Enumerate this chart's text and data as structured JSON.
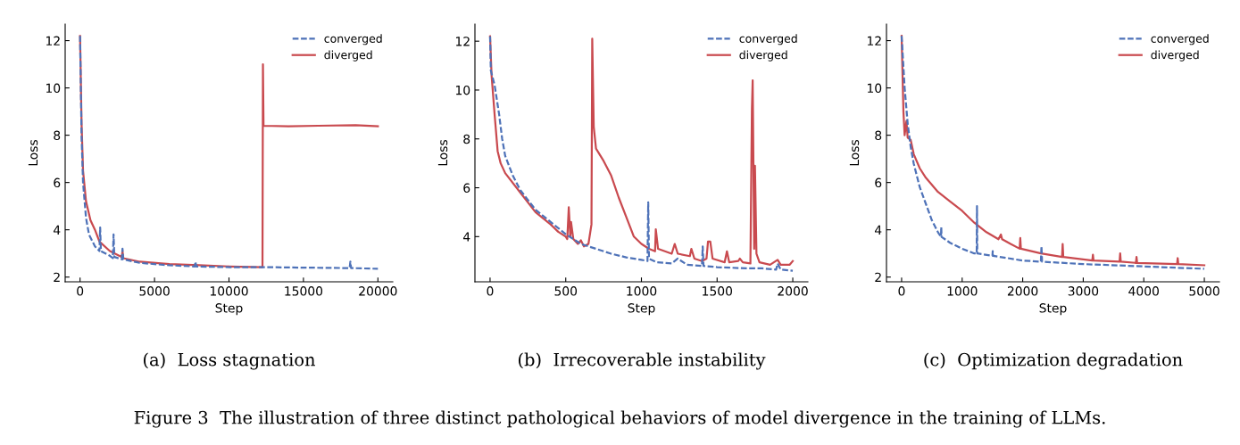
{
  "chart_data": [
    {
      "type": "line",
      "title": "(a)  Loss stagnation",
      "xlabel": "Step",
      "ylabel": "Loss",
      "xlim": [
        -1000,
        21000
      ],
      "ylim": [
        1.8,
        12.7
      ],
      "xticks": [
        0,
        5000,
        10000,
        15000,
        20000
      ],
      "yticks": [
        2,
        4,
        6,
        8,
        10,
        12
      ],
      "legend": "top right",
      "grid": false,
      "annotations": [
        "Figure 3  The illustration of three distinct pathological behaviors of model divergence in the training of LLMs."
      ],
      "series": [
        {
          "name": "converged",
          "color": "#4e72b8",
          "line_style": "dashed",
          "x": [
            0,
            100,
            200,
            400,
            600,
            1000,
            1300,
            1350,
            1400,
            2000,
            2200,
            2250,
            2300,
            2800,
            2850,
            2900,
            4000,
            6000,
            7700,
            7750,
            7800,
            10000,
            12300,
            15000,
            18100,
            18150,
            18200,
            20000
          ],
          "values": [
            12.2,
            8,
            6,
            4.5,
            3.8,
            3.3,
            3.1,
            4.1,
            3.1,
            2.9,
            2.8,
            3.8,
            2.85,
            2.75,
            3.2,
            2.75,
            2.6,
            2.5,
            2.45,
            2.65,
            2.45,
            2.42,
            2.42,
            2.4,
            2.38,
            2.65,
            2.38,
            2.35
          ]
        },
        {
          "name": "diverged",
          "color": "#c94a4f",
          "line_style": "solid",
          "x": [
            0,
            100,
            200,
            400,
            700,
            1000,
            1300,
            2000,
            2800,
            2850,
            2900,
            4000,
            6000,
            8000,
            10000,
            12250,
            12280,
            12320,
            14000,
            16000,
            18500,
            20000
          ],
          "values": [
            12.2,
            8.5,
            6.5,
            5.2,
            4.4,
            4.0,
            3.5,
            3.1,
            2.85,
            3.1,
            2.8,
            2.65,
            2.55,
            2.5,
            2.45,
            2.42,
            11.0,
            8.4,
            8.38,
            8.4,
            8.42,
            8.38
          ]
        }
      ]
    },
    {
      "type": "line",
      "title": "(b)  Irrecoverable instability",
      "xlabel": "Step",
      "ylabel": "Loss",
      "xlim": [
        -100,
        2100
      ],
      "ylim": [
        2.15,
        12.7
      ],
      "xticks": [
        0,
        500,
        1000,
        1500,
        2000
      ],
      "yticks": [
        4,
        6,
        8,
        10,
        12
      ],
      "legend": "top right",
      "grid": false,
      "series": [
        {
          "name": "converged",
          "color": "#4e72b8",
          "line_style": "dashed",
          "x": [
            0,
            5,
            30,
            60,
            80,
            100,
            150,
            200,
            300,
            400,
            500,
            600,
            700,
            800,
            900,
            1000,
            1040,
            1045,
            1050,
            1100,
            1200,
            1240,
            1300,
            1400,
            1405,
            1410,
            1500,
            1700,
            1800,
            1890,
            1900,
            1920,
            2000
          ],
          "values": [
            12.2,
            10.8,
            10.2,
            9,
            8,
            7.3,
            6.5,
            5.9,
            5.1,
            4.6,
            4.1,
            3.7,
            3.5,
            3.3,
            3.15,
            3.05,
            3.0,
            5.4,
            3.1,
            2.95,
            2.9,
            3.1,
            2.85,
            2.8,
            3.6,
            2.8,
            2.75,
            2.7,
            2.7,
            2.65,
            2.9,
            2.65,
            2.6
          ]
        },
        {
          "name": "diverged",
          "color": "#c94a4f",
          "line_style": "solid",
          "x": [
            0,
            10,
            30,
            50,
            70,
            100,
            200,
            300,
            400,
            450,
            500,
            510,
            520,
            530,
            535,
            550,
            580,
            600,
            620,
            650,
            670,
            675,
            685,
            700,
            750,
            800,
            850,
            900,
            950,
            1000,
            1050,
            1090,
            1095,
            1110,
            1200,
            1220,
            1240,
            1320,
            1330,
            1350,
            1400,
            1430,
            1440,
            1455,
            1470,
            1550,
            1565,
            1580,
            1640,
            1650,
            1670,
            1720,
            1730,
            1735,
            1745,
            1750,
            1760,
            1780,
            1850,
            1900,
            1920,
            1980,
            2000
          ],
          "values": [
            12.2,
            10.6,
            9,
            7.5,
            7.0,
            6.6,
            5.8,
            5.0,
            4.5,
            4.2,
            4.0,
            3.9,
            5.2,
            4.0,
            4.6,
            3.9,
            3.7,
            3.85,
            3.6,
            3.7,
            4.5,
            12.1,
            8.5,
            7.6,
            7.1,
            6.5,
            5.6,
            4.8,
            4.0,
            3.7,
            3.5,
            3.4,
            4.3,
            3.5,
            3.3,
            3.7,
            3.3,
            3.2,
            3.5,
            3.1,
            3.0,
            3.1,
            3.8,
            3.8,
            3.1,
            2.95,
            3.4,
            2.95,
            3.0,
            3.1,
            2.95,
            2.9,
            9.2,
            10.4,
            3.5,
            6.9,
            3.3,
            2.95,
            2.85,
            3.05,
            2.85,
            2.85,
            3.0
          ]
        }
      ]
    },
    {
      "type": "line",
      "title": "(c)  Optimization degradation",
      "xlabel": "Step",
      "ylabel": "Loss",
      "xlim": [
        -250,
        5250
      ],
      "ylim": [
        1.8,
        12.7
      ],
      "xticks": [
        0,
        1000,
        2000,
        3000,
        4000,
        5000
      ],
      "yticks": [
        2,
        4,
        6,
        8,
        10,
        12
      ],
      "legend": "top right",
      "grid": false,
      "series": [
        {
          "name": "converged",
          "color": "#4e72b8",
          "line_style": "dashed",
          "x": [
            0,
            50,
            100,
            150,
            200,
            300,
            400,
            500,
            600,
            650,
            655,
            660,
            800,
            1000,
            1200,
            1240,
            1245,
            1250,
            1500,
            1505,
            1510,
            2000,
            2300,
            2310,
            2320,
            3000,
            4000,
            5000
          ],
          "values": [
            12.2,
            10,
            8.5,
            7.5,
            6.8,
            5.8,
            5.1,
            4.4,
            3.9,
            3.7,
            4.1,
            3.7,
            3.45,
            3.2,
            3.0,
            3.0,
            5.0,
            3.0,
            2.9,
            3.1,
            2.9,
            2.7,
            2.65,
            3.3,
            2.65,
            2.55,
            2.45,
            2.35
          ]
        },
        {
          "name": "diverged",
          "color": "#c94a4f",
          "line_style": "solid",
          "x": [
            0,
            30,
            50,
            80,
            100,
            150,
            200,
            300,
            400,
            600,
            800,
            1000,
            1200,
            1400,
            1600,
            1640,
            1660,
            1800,
            1950,
            1960,
            1970,
            2300,
            2650,
            2660,
            2670,
            3000,
            3150,
            3160,
            3170,
            3600,
            3610,
            3620,
            3870,
            3880,
            3890,
            4550,
            4560,
            4570,
            5000
          ],
          "values": [
            12.2,
            9,
            8.0,
            8.6,
            7.9,
            7.8,
            7.2,
            6.6,
            6.2,
            5.6,
            5.2,
            4.8,
            4.3,
            3.9,
            3.6,
            3.8,
            3.6,
            3.4,
            3.2,
            3.65,
            3.2,
            3.0,
            2.85,
            3.4,
            2.85,
            2.75,
            2.7,
            2.95,
            2.7,
            2.65,
            3.0,
            2.65,
            2.6,
            2.85,
            2.6,
            2.55,
            2.8,
            2.55,
            2.5
          ]
        }
      ]
    }
  ]
}
